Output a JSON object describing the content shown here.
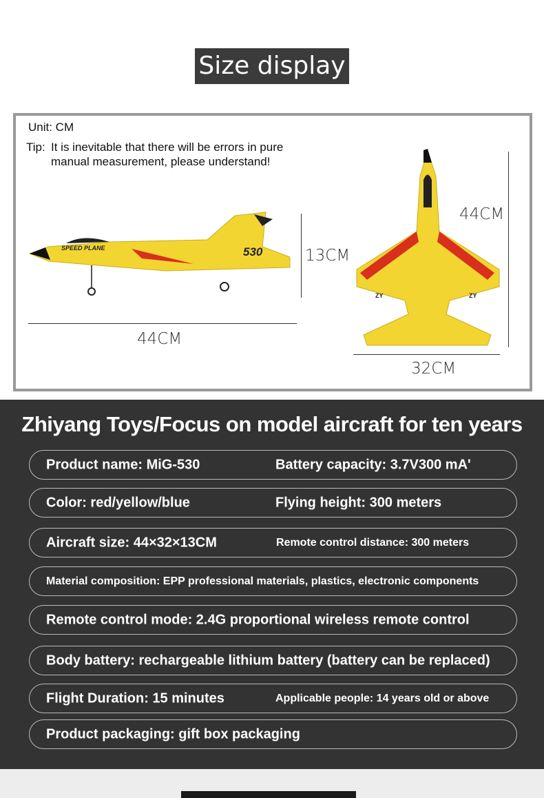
{
  "size_section": {
    "title": "Size display",
    "unit": "Unit: CM",
    "tip_label": "Tip:",
    "tip_text_1": "It is inevitable that there will be errors in pure",
    "tip_text_2": "manual measurement, please understand!",
    "side_length": "44CM",
    "side_height": "13CM",
    "top_length": "44CM",
    "top_width": "32CM",
    "side_decal": "SPEED PLANE",
    "tail_number": "530",
    "wing_badge": "ZY"
  },
  "specs": {
    "heading": "Zhiyang Toys/Focus on model aircraft for ten years",
    "rows": [
      {
        "left": "Product name: MiG-530",
        "right": "Battery capacity: 3.7V300 mA'"
      },
      {
        "left": "Color: red/yellow/blue",
        "right": "Flying height: 300 meters"
      },
      {
        "left": "Aircraft size: 44×32×13CM",
        "right": "Remote control distance: 300 meters"
      },
      {
        "left": "Material composition: EPP professional materials, plastics, electronic components"
      },
      {
        "left": "Remote control mode: 2.4G proportional wireless remote control"
      },
      {
        "left": "Body battery: rechargeable lithium battery (battery can be replaced)"
      },
      {
        "left": "Flight Duration: 15 minutes",
        "right": "Applicable people: 14 years old or above"
      },
      {
        "left": "Product packaging: gift box packaging"
      }
    ]
  },
  "colors": {
    "plane_yellow": "#f2d530",
    "accent_red": "#d8301c",
    "dark_bg": "#333333"
  }
}
